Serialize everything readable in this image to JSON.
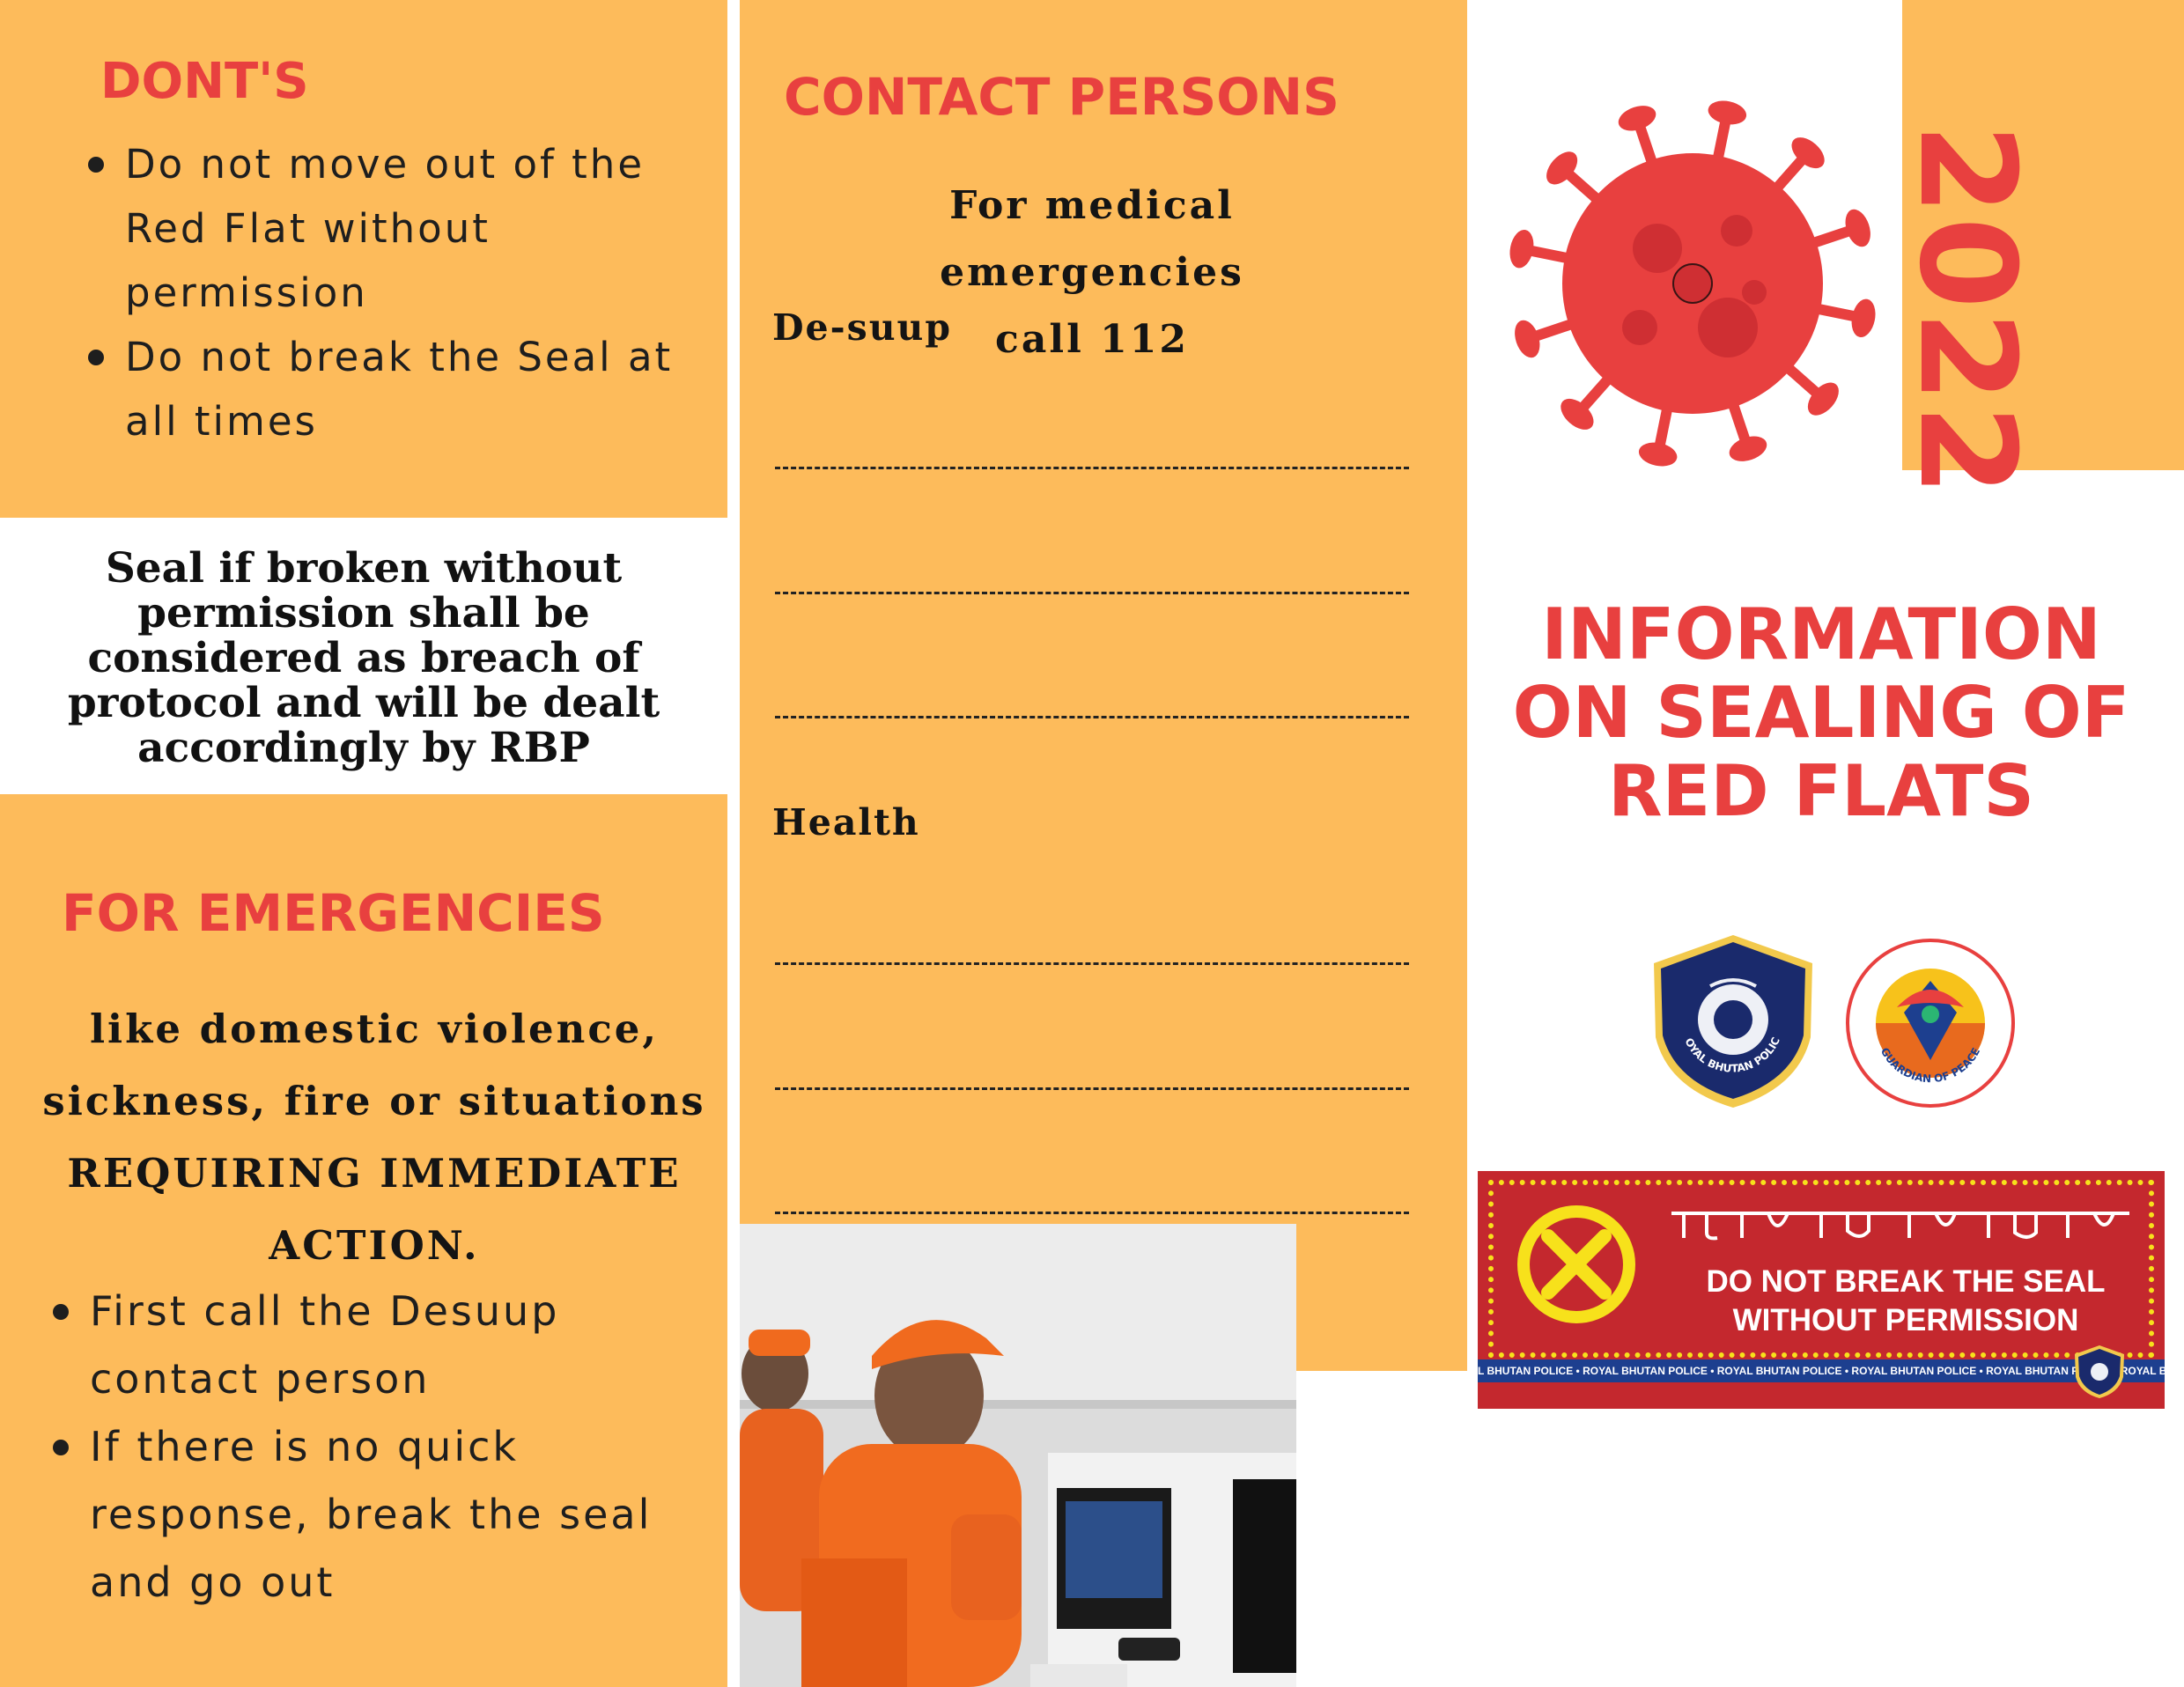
{
  "donts": {
    "heading": "DONT'S",
    "items": [
      {
        "l1": "Do not move out of the",
        "l2": "Red Flat without",
        "l3": "permission"
      },
      {
        "l1": "Do not break the Seal at",
        "l2": "all times"
      }
    ]
  },
  "warning": {
    "lines": [
      "Seal if  broken without",
      "permission shall be",
      "considered as breach of",
      "protocol and will be dealt",
      "accordingly by RBP"
    ]
  },
  "emergencies": {
    "heading": "FOR EMERGENCIES",
    "lines": [
      "like domestic violence,",
      "sickness, fire or situations",
      "REQUIRING IMMEDIATE",
      "ACTION."
    ],
    "items": [
      {
        "l1": "First call the Desuup",
        "l2": "contact person"
      },
      {
        "l1": "If there is no quick",
        "l2": "response, break the seal",
        "l3": "and go out"
      }
    ]
  },
  "contacts": {
    "heading": "CONTACT PERSONS",
    "medical_l1": "For medical emergencies",
    "medical_l2": "call 112",
    "desuup_label": "De-suup",
    "health_label": "Health"
  },
  "cover": {
    "year": "2022",
    "title_lines": [
      "INFORMATION",
      "ON SEALING OF",
      "RED FLATS"
    ]
  },
  "logos": {
    "rbp_text": "ROYAL BHUTAN POLICE",
    "guardian_text": "GUARDIAN OF PEACE"
  },
  "seal_banner": {
    "line1": "DO NOT BREAK THE SEAL",
    "line2": "WITHOUT PERMISSION",
    "ribbon": "L BHUTAN POLICE • ROYAL BHUTAN POLICE • ROYAL BHUTAN POLICE • ROYAL BHUTAN POLICE • ROYAL BHUTAN POLICE • ROYAL BHUTAN POLICE • BHUTAN"
  },
  "colors": {
    "panel": "#fdbb5b",
    "accent": "#e8403f",
    "banner_red": "#c4282e",
    "banner_yellow": "#f7e11b",
    "ribbon_blue": "#1d3f8f"
  }
}
